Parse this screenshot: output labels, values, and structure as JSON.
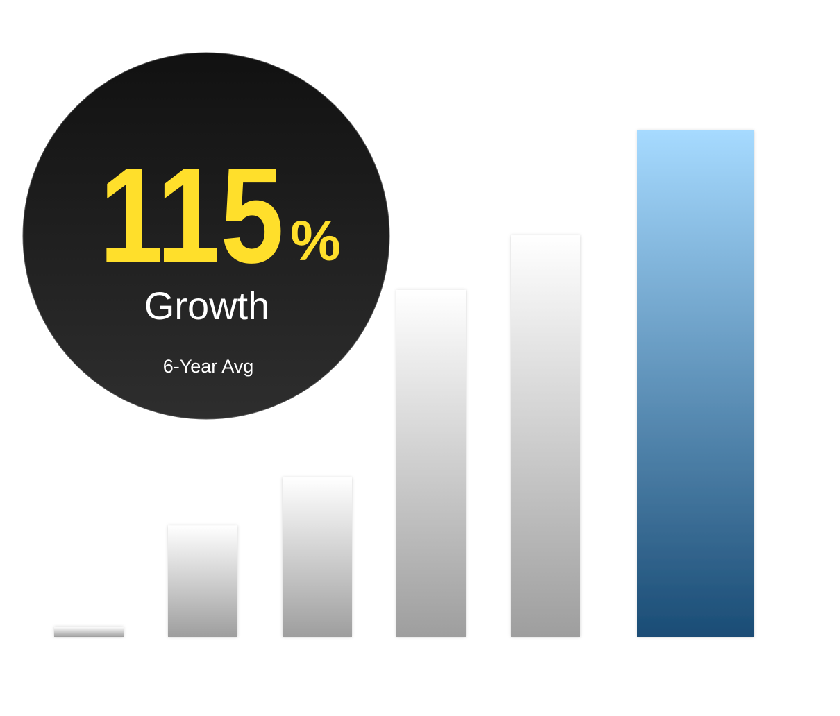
{
  "chart_data": {
    "type": "bar",
    "stat_value": "115",
    "stat_unit": "%",
    "stat_label": "Growth",
    "subtitle": "6-Year Avg",
    "categories": [
      null,
      null,
      null,
      null,
      null,
      null
    ],
    "values": [
      2,
      22,
      31.5,
      68.5,
      79.3,
      100
    ],
    "gradients": [
      [
        "#ffffff",
        "#9e9e9e"
      ],
      [
        "#ffffff",
        "#9e9e9e"
      ],
      [
        "#ffffff",
        "#9e9e9e"
      ],
      [
        "#ffffff",
        "#9e9e9e"
      ],
      [
        "#ffffff",
        "#9e9e9e"
      ],
      [
        "#a6daff",
        "#1a4c75"
      ]
    ],
    "ylim": [
      0,
      100
    ]
  }
}
